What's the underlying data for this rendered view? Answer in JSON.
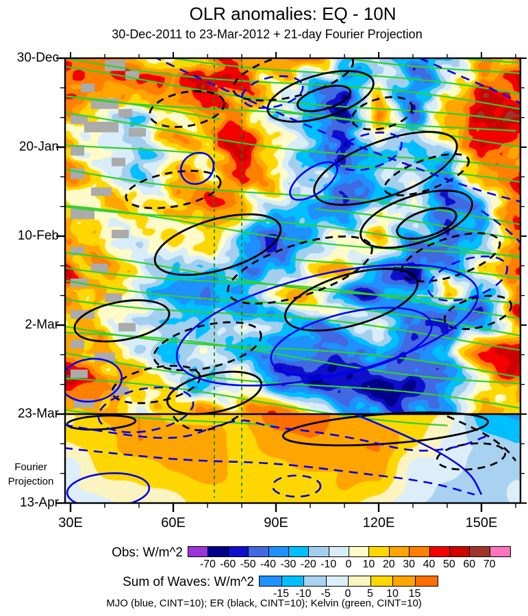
{
  "title": "OLR anomalies: EQ - 10N",
  "subtitle": "30-Dec-2011 to 23-Mar-2012 + 21-day Fourier Projection",
  "chart_data": {
    "type": "heatmap",
    "description": "Hovmoller (time-longitude) diagram of OLR anomalies averaged EQ-10N, with MJO, ER and Kelvin wave contours; observed period above the 23-Mar line, 21-day Fourier projection below.",
    "x_axis": {
      "ticks": [
        {
          "label": "30E",
          "lon": 30
        },
        {
          "label": "60E",
          "lon": 60
        },
        {
          "label": "90E",
          "lon": 90
        },
        {
          "label": "120E",
          "lon": 120
        },
        {
          "label": "150E",
          "lon": 150
        }
      ],
      "minor_lons": [
        40,
        50,
        70,
        80,
        100,
        110,
        130,
        140,
        160
      ],
      "range_lon": [
        28.4,
        161.4
      ]
    },
    "y_axis": {
      "ticks": [
        {
          "label": "30-Dec",
          "day": 0
        },
        {
          "label": "20-Jan",
          "day": 21
        },
        {
          "label": "10-Feb",
          "day": 42
        },
        {
          "label": "2-Mar",
          "day": 63
        },
        {
          "label": "23-Mar",
          "day": 84
        },
        {
          "label": "13-Apr",
          "day": 105
        }
      ],
      "minor_days": [
        7,
        14,
        28,
        35,
        49,
        56,
        70,
        77,
        91,
        98
      ],
      "range_days": [
        0,
        105
      ]
    },
    "projection_start_day": 84,
    "projection_label": [
      "Fourier",
      "Projection"
    ],
    "obs_scale": {
      "label": "Obs: W/m^2",
      "boundaries": [
        -70,
        -60,
        -50,
        -40,
        -30,
        -20,
        -10,
        0,
        10,
        20,
        30,
        40,
        50,
        60,
        70
      ],
      "colors": [
        "#9933DB",
        "#00008B",
        "#0E0ECB",
        "#4169E1",
        "#1E90FF",
        "#00BFFF",
        "#A2CFEE",
        "#D9ECF9",
        "#FFFBC8",
        "#FFD700",
        "#FFA500",
        "#FF7F00",
        "#F40000",
        "#CE0000",
        "#A0342C",
        "#FF72BE"
      ]
    },
    "sum_scale": {
      "label": "Sum of Waves: W/m^2",
      "boundaries": [
        -15,
        -10,
        -5,
        0,
        5,
        10,
        15
      ],
      "colors": [
        "#1E90FF",
        "#00BFFF",
        "#A8D2F0",
        "#DCEEFA",
        "#FBF3C0",
        "#FFD700",
        "#FFA500",
        "#FF6E00"
      ]
    },
    "caption": "MJO (blue, CINT=10); ER (black, CINT=10); Kelvin (green, CINT=10)",
    "obs_grid": {
      "lon_start": 30,
      "lon_step": 10,
      "day_step": 7,
      "values": [
        [
          30,
          28,
          24,
          22,
          28,
          34,
          30,
          22,
          -18,
          -15,
          -45,
          -20,
          35,
          30
        ],
        [
          28,
          22,
          18,
          24,
          40,
          38,
          8,
          -22,
          -42,
          22,
          -45,
          -15,
          44,
          40
        ],
        [
          14,
          12,
          -8,
          10,
          30,
          24,
          -12,
          -46,
          -44,
          28,
          -30,
          20,
          40,
          45
        ],
        [
          24,
          -6,
          -6,
          18,
          34,
          44,
          22,
          -22,
          -50,
          -22,
          -35,
          5,
          55,
          45
        ],
        [
          20,
          -6,
          -12,
          6,
          20,
          30,
          6,
          -16,
          -40,
          -26,
          -20,
          -40,
          20,
          44
        ],
        [
          28,
          24,
          6,
          6,
          20,
          20,
          -12,
          -30,
          -44,
          -22,
          20,
          -44,
          -26,
          40
        ],
        [
          30,
          20,
          6,
          14,
          20,
          -24,
          -44,
          -22,
          10,
          30,
          -32,
          -50,
          -22,
          36
        ],
        [
          44,
          24,
          6,
          -12,
          -26,
          -40,
          -30,
          28,
          24,
          -36,
          -54,
          -32,
          20,
          30
        ],
        [
          30,
          20,
          -6,
          -22,
          -40,
          -26,
          6,
          20,
          -30,
          -50,
          -26,
          20,
          -44,
          36
        ],
        [
          20,
          6,
          -16,
          -30,
          -26,
          -6,
          -26,
          -44,
          -26,
          6,
          -36,
          -50,
          -22,
          30
        ],
        [
          34,
          20,
          -6,
          -26,
          -12,
          -30,
          -58,
          -30,
          -54,
          -36,
          -58,
          -26,
          30,
          44
        ],
        [
          48,
          30,
          20,
          -6,
          -26,
          14,
          -40,
          -62,
          -44,
          -58,
          -50,
          -30,
          20,
          30
        ],
        [
          30,
          34,
          20,
          6,
          24,
          34,
          30,
          14,
          -30,
          -44,
          -34,
          -22,
          20,
          30
        ]
      ]
    },
    "projection_grid": {
      "lon_start": 30,
      "lon_step": 10,
      "days": [
        84,
        92,
        98,
        105
      ],
      "values": [
        [
          8,
          11,
          12,
          10,
          10,
          12,
          16,
          17,
          13,
          10,
          7,
          3,
          -13,
          -16
        ],
        [
          3,
          9,
          12,
          12,
          10,
          11,
          13,
          14,
          14,
          14,
          4,
          -2,
          -4,
          -8
        ],
        [
          -1,
          5,
          8,
          10,
          10,
          10,
          10,
          10,
          10,
          12,
          0,
          -4,
          -6,
          -5
        ],
        [
          -5,
          -2,
          2,
          5,
          7,
          8,
          8,
          7,
          5,
          2,
          -2,
          -5,
          -6,
          -4
        ]
      ]
    },
    "overlays": {
      "kelvin_color": "#2FD02F",
      "mjo_color": "#0000EE",
      "er_color": "#000000",
      "campaign_color": "#128A12",
      "gray_color": "#ABABAB",
      "campaign_lons": [
        72,
        80
      ],
      "kelvin_lines": [
        [
          -13,
          14
        ],
        [
          -9,
          13
        ],
        [
          -4,
          13
        ],
        [
          0,
          12
        ],
        [
          3,
          13
        ],
        [
          8,
          12
        ],
        [
          10,
          12,
          0,
          0.35
        ],
        [
          14,
          13
        ],
        [
          20,
          12,
          0,
          0.3
        ],
        [
          26,
          13
        ],
        [
          30,
          12,
          0.55,
          1
        ],
        [
          34,
          12
        ],
        [
          35.8,
          12
        ],
        [
          40,
          13,
          0.5,
          1
        ],
        [
          47,
          12
        ],
        [
          48.6,
          12
        ],
        [
          52,
          13
        ],
        [
          56,
          12
        ],
        [
          63,
          12
        ],
        [
          64.6,
          12
        ],
        [
          70,
          13
        ],
        [
          76,
          12
        ],
        [
          82,
          12,
          0,
          0.8
        ],
        [
          18,
          12,
          0.6,
          1
        ],
        [
          6,
          12,
          0.45,
          1
        ]
      ],
      "ellipses": [
        [
          95,
          4,
          18,
          5,
          -14,
          "er",
          1
        ],
        [
          103,
          9,
          16,
          5,
          -16,
          "er",
          0
        ],
        [
          104,
          9.5,
          8,
          2.5,
          -16,
          "er",
          0
        ],
        [
          64,
          12,
          11,
          4,
          -10,
          "er",
          1
        ],
        [
          121,
          13,
          9,
          3.5,
          -14,
          "er",
          1
        ],
        [
          122,
          26,
          22,
          6.5,
          -20,
          "er",
          0
        ],
        [
          134,
          27.5,
          13,
          3.5,
          -20,
          "er",
          1
        ],
        [
          60,
          31,
          14,
          4,
          -10,
          "er",
          1
        ],
        [
          131,
          38,
          17,
          5.5,
          -18,
          "er",
          0
        ],
        [
          134,
          39,
          9,
          3,
          -18,
          "er",
          0
        ],
        [
          73,
          44,
          19,
          6,
          -16,
          "er",
          0
        ],
        [
          97,
          50,
          22,
          6,
          -18,
          "er",
          1
        ],
        [
          141,
          47,
          15,
          4.5,
          -18,
          "er",
          1
        ],
        [
          112,
          57,
          20,
          6,
          -16,
          "er",
          0
        ],
        [
          149,
          60,
          10,
          3.5,
          -14,
          "er",
          1
        ],
        [
          45,
          62,
          14,
          4.5,
          -10,
          "er",
          0
        ],
        [
          70,
          68,
          16,
          5,
          -13,
          "er",
          1
        ],
        [
          55,
          77,
          13,
          4,
          -11,
          "er",
          1
        ],
        [
          72,
          79,
          14,
          4.5,
          -12,
          "er",
          0
        ],
        [
          39,
          86,
          10,
          1.6,
          -3,
          "er",
          0
        ],
        [
          122,
          87.5,
          30,
          3.5,
          -4,
          "er",
          0
        ],
        [
          147,
          94,
          10,
          3,
          -6,
          "er",
          1
        ],
        [
          89,
          8,
          9,
          3.5,
          -12,
          "mjo",
          1
        ],
        [
          117,
          22,
          10,
          4,
          -16,
          "mjo",
          1
        ],
        [
          67,
          26,
          5,
          3.5,
          -35,
          "mjo",
          0
        ],
        [
          101,
          29,
          8,
          3,
          -35,
          "mjo",
          0
        ],
        [
          146,
          52,
          12,
          4.5,
          -18,
          "mjo",
          1
        ],
        [
          105,
          63,
          45,
          12,
          -13,
          "mjo",
          0
        ],
        [
          112,
          67,
          24,
          7,
          -13,
          "mjo",
          0
        ],
        [
          36,
          76,
          9,
          5,
          -8,
          "mjo",
          0
        ],
        [
          52,
          83,
          14,
          5,
          -10,
          "mjo",
          1
        ],
        [
          41,
          102,
          12,
          4,
          -4,
          "mjo",
          0
        ],
        [
          96,
          101,
          7,
          2.5,
          0,
          "mjo",
          1
        ]
      ],
      "paths": [
        {
          "p": [
            [
              50,
              -2
            ],
            [
              68,
              5
            ],
            [
              88,
              12
            ],
            [
              108,
              19
            ],
            [
              128,
              25
            ],
            [
              148,
              31
            ],
            [
              162,
              34
            ]
          ],
          "c": "mjo",
          "d": 1
        },
        {
          "p": [
            [
              132,
              0
            ],
            [
              146,
              5
            ],
            [
              158,
              9
            ],
            [
              162,
              11
            ]
          ],
          "c": "mjo",
          "d": 1
        },
        {
          "p": [
            [
              150,
              36
            ],
            [
              157,
              40
            ],
            [
              162,
              44
            ]
          ],
          "c": "mjo",
          "d": 1
        },
        {
          "p": [
            [
              28,
              86.5
            ],
            [
              45,
              89
            ],
            [
              62,
              90
            ],
            [
              72,
              87
            ],
            [
              80,
              85
            ],
            [
              88,
              87
            ],
            [
              100,
              88
            ],
            [
              115,
              90
            ],
            [
              130,
              93
            ],
            [
              143,
              92
            ],
            [
              152,
              89
            ]
          ],
          "c": "mjo",
          "d": 1
        },
        {
          "p": [
            [
              28,
              92
            ],
            [
              45,
              93.5
            ],
            [
              65,
              95
            ],
            [
              90,
              95.5
            ],
            [
              115,
              98
            ],
            [
              135,
              100
            ],
            [
              148,
              103
            ]
          ],
          "c": "mjo",
          "d": 1
        },
        {
          "p": [
            [
              113,
              84
            ],
            [
              125,
              88
            ],
            [
              138,
              93
            ],
            [
              147,
              98
            ],
            [
              150,
              103
            ]
          ],
          "c": "mjo",
          "d": 0
        },
        {
          "p": [
            [
              60,
              84.5
            ],
            [
              63,
              87.5
            ],
            [
              70,
              88
            ],
            [
              76,
              86
            ],
            [
              79,
              84.5
            ]
          ],
          "c": "er",
          "d": 1
        },
        {
          "p": [
            [
              140,
              84.5
            ],
            [
              150,
              88
            ],
            [
              157,
              92
            ],
            [
              160,
              95
            ]
          ],
          "c": "er",
          "d": 1
        }
      ],
      "gray_blocks": [
        [
          40,
          0.5,
          6,
          2.5
        ],
        [
          46,
          3,
          4,
          2
        ],
        [
          33,
          6,
          4,
          2
        ],
        [
          36,
          9.5,
          8,
          2.5
        ],
        [
          44,
          12,
          4,
          2
        ],
        [
          30,
          13.5,
          5,
          2
        ],
        [
          34,
          15,
          10,
          2.5
        ],
        [
          47,
          16.5,
          5,
          2
        ],
        [
          30,
          20.5,
          4,
          2.5
        ],
        [
          42,
          23.5,
          4,
          2
        ],
        [
          30,
          26,
          4,
          2.5
        ],
        [
          36,
          30.5,
          6,
          2
        ],
        [
          30,
          35.5,
          7,
          2.5
        ],
        [
          42,
          40.5,
          5,
          2
        ],
        [
          30,
          44.5,
          4,
          2
        ],
        [
          36,
          48.5,
          5,
          2
        ],
        [
          30,
          52,
          5,
          2
        ],
        [
          40,
          55.5,
          5,
          2
        ],
        [
          30,
          59.5,
          7,
          2
        ],
        [
          44,
          62.5,
          5,
          2
        ],
        [
          30,
          66.5,
          4,
          2
        ],
        [
          37,
          69.5,
          6,
          2
        ],
        [
          30,
          73.5,
          5,
          2
        ],
        [
          42,
          77.5,
          5,
          2
        ],
        [
          31,
          80.5,
          6,
          2
        ]
      ]
    }
  }
}
